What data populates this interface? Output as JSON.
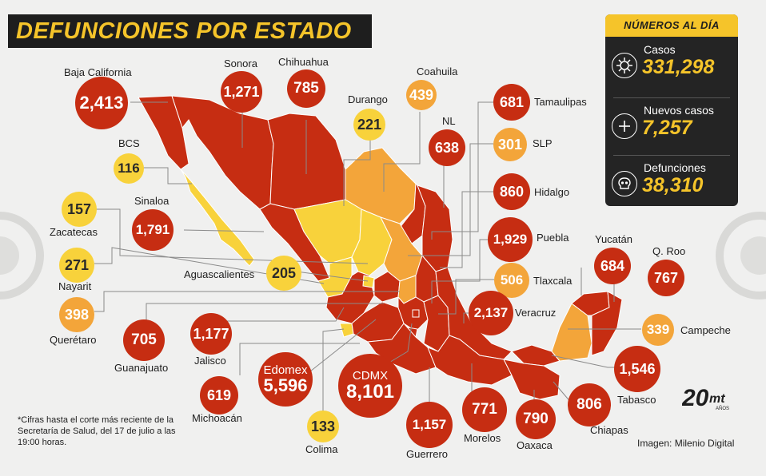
{
  "title": "DEFUNCIONES POR ESTADO",
  "panel": {
    "heading": "NÚMEROS AL DÍA",
    "rows": [
      {
        "label": "Casos",
        "value": "331,298",
        "icon": "virus-icon"
      },
      {
        "label": "Nuevos casos",
        "value": "7,257",
        "icon": "plus-icon"
      },
      {
        "label": "Defunciones",
        "value": "38,310",
        "icon": "skull-icon"
      }
    ]
  },
  "colors": {
    "red": "#c62d12",
    "orange": "#f3a53a",
    "yellow": "#f8d23b",
    "dark": "#1e1e1e",
    "accent": "#f5c42a"
  },
  "states": [
    {
      "id": "baja-california",
      "name": "Baja California",
      "value": "2,413",
      "color": "red"
    },
    {
      "id": "sonora",
      "name": "Sonora",
      "value": "1,271",
      "color": "red"
    },
    {
      "id": "chihuahua",
      "name": "Chihuahua",
      "value": "785",
      "color": "red"
    },
    {
      "id": "durango",
      "name": "Durango",
      "value": "221",
      "color": "yellow"
    },
    {
      "id": "coahuila",
      "name": "Coahuila",
      "value": "439",
      "color": "orange"
    },
    {
      "id": "nl",
      "name": "NL",
      "value": "638",
      "color": "red"
    },
    {
      "id": "tamaulipas",
      "name": "Tamaulipas",
      "value": "681",
      "color": "red"
    },
    {
      "id": "slp",
      "name": "SLP",
      "value": "301",
      "color": "orange"
    },
    {
      "id": "hidalgo",
      "name": "Hidalgo",
      "value": "860",
      "color": "red"
    },
    {
      "id": "puebla",
      "name": "Puebla",
      "value": "1,929",
      "color": "red"
    },
    {
      "id": "tlaxcala",
      "name": "Tlaxcala",
      "value": "506",
      "color": "orange"
    },
    {
      "id": "veracruz",
      "name": "Veracruz",
      "value": "2,137",
      "color": "red"
    },
    {
      "id": "yucatan",
      "name": "Yucatán",
      "value": "684",
      "color": "red"
    },
    {
      "id": "qroo",
      "name": "Q. Roo",
      "value": "767",
      "color": "red"
    },
    {
      "id": "campeche",
      "name": "Campeche",
      "value": "339",
      "color": "orange"
    },
    {
      "id": "tabasco",
      "name": "Tabasco",
      "value": "1,546",
      "color": "red"
    },
    {
      "id": "chiapas",
      "name": "Chiapas",
      "value": "806",
      "color": "red"
    },
    {
      "id": "oaxaca",
      "name": "Oaxaca",
      "value": "790",
      "color": "red"
    },
    {
      "id": "morelos",
      "name": "Morelos",
      "value": "771",
      "color": "red"
    },
    {
      "id": "guerrero",
      "name": "Guerrero",
      "value": "1,157",
      "color": "red"
    },
    {
      "id": "cdmx",
      "name": "CDMX",
      "value": "8,101",
      "color": "red"
    },
    {
      "id": "edomex",
      "name": "Edomex",
      "value": "5,596",
      "color": "red"
    },
    {
      "id": "colima",
      "name": "Colima",
      "value": "133",
      "color": "yellow"
    },
    {
      "id": "michoacan",
      "name": "Michoacán",
      "value": "619",
      "color": "red"
    },
    {
      "id": "jalisco",
      "name": "Jalisco",
      "value": "1,177",
      "color": "red"
    },
    {
      "id": "guanajuato",
      "name": "Guanajuato",
      "value": "705",
      "color": "red"
    },
    {
      "id": "queretaro",
      "name": "Querétaro",
      "value": "398",
      "color": "orange"
    },
    {
      "id": "nayarit",
      "name": "Nayarit",
      "value": "271",
      "color": "yellow"
    },
    {
      "id": "zacatecas",
      "name": "Zacatecas",
      "value": "157",
      "color": "yellow"
    },
    {
      "id": "aguascalientes",
      "name": "Aguascalientes",
      "value": "205",
      "color": "yellow"
    },
    {
      "id": "sinaloa",
      "name": "Sinaloa",
      "value": "1,791",
      "color": "red"
    },
    {
      "id": "bcs",
      "name": "BCS",
      "value": "116",
      "color": "yellow"
    }
  ],
  "footnote": "*Cifras hasta el corte más reciente de la Secretaría de Salud, del 17 de julio a las 19:00 horas.",
  "credit": "Imagen: Milenio Digital",
  "logo_text": "20mt",
  "logo_sub": "AÑOS"
}
